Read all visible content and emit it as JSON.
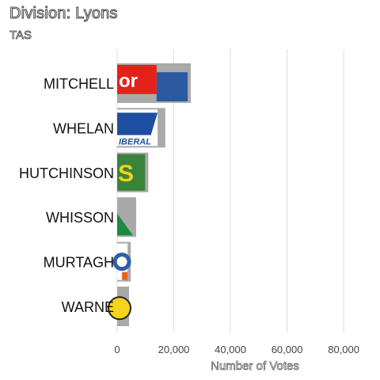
{
  "title": "Division: Lyons",
  "subtitle": "TAS",
  "chart_data": {
    "type": "bar",
    "orientation": "horizontal",
    "title": "Division: Lyons",
    "subtitle": "TAS",
    "categories": [
      "MITCHELL",
      "WHELAN",
      "HUTCHINSON",
      "WHISSON",
      "MURTAGH",
      "WARNE"
    ],
    "values": [
      26000,
      17000,
      11000,
      6700,
      4800,
      4200
    ],
    "party_logos": [
      "labor",
      "liberal",
      "greens",
      "nationals",
      "lambie",
      "one-nation"
    ],
    "xlabel": "Number of Votes",
    "xlim": [
      0,
      85000
    ],
    "xticks": [
      0,
      20000,
      40000,
      60000,
      80000
    ],
    "xtick_labels": [
      "0",
      "20,000",
      "40,000",
      "60,000",
      "80,000"
    ],
    "grid": "vertical",
    "colors": {
      "bar": "#a9a9a9",
      "gridline": "#dddddd",
      "labor": "#e2231a",
      "liberal": "#1c4fa0",
      "greens": "#39833a",
      "nationals": "#1b8a43",
      "lambie": "#2e5ea8",
      "one-nation": "#f6d31d"
    }
  }
}
